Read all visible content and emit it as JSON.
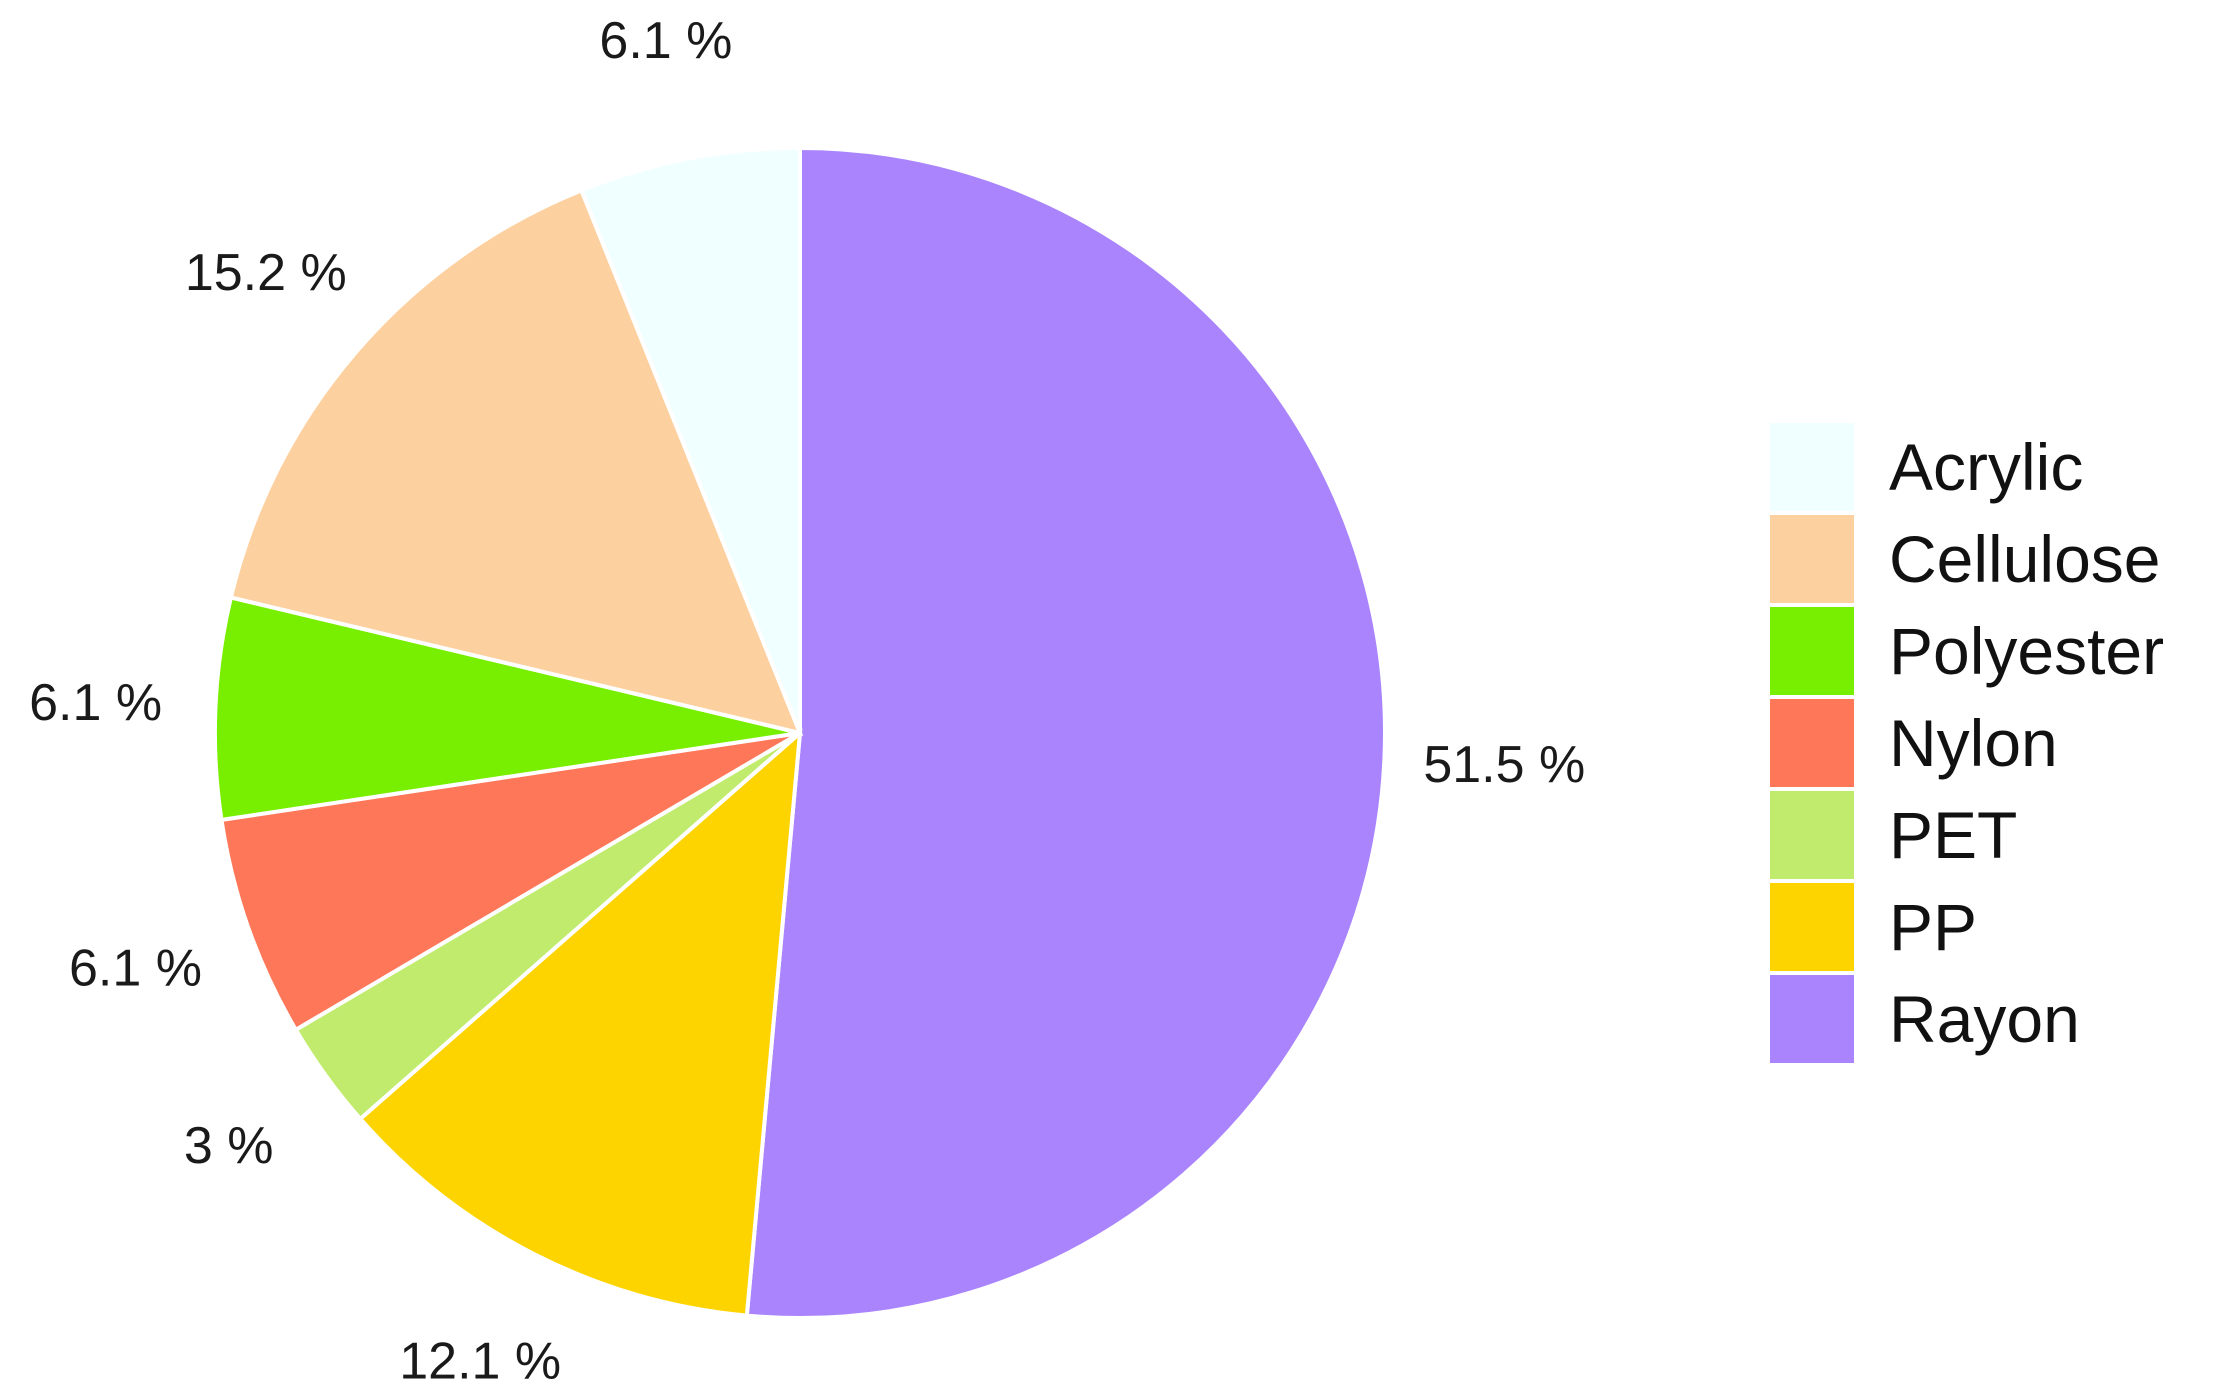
{
  "chart_data": {
    "type": "pie",
    "title": "",
    "start": "12 o'clock",
    "direction": "clockwise",
    "categories": [
      "Rayon",
      "PP",
      "PET",
      "Nylon",
      "Polyester",
      "Cellulose",
      "Acrylic"
    ],
    "values": [
      51.5,
      12.1,
      3,
      6.1,
      6.1,
      15.2,
      6.1
    ],
    "labels": [
      "51.5 %",
      "12.1 %",
      "3 %",
      "6.1 %",
      "6.1 %",
      "15.2 %",
      "6.1 %"
    ],
    "colors": [
      "#A984FC",
      "#FDD400",
      "#C0EB6C",
      "#FF7759",
      "#78EF00",
      "#FDD09F",
      "#F0FFFF"
    ],
    "legend": {
      "position": "right",
      "entries": [
        {
          "label": "Acrylic",
          "color": "#F0FFFF"
        },
        {
          "label": "Cellulose",
          "color": "#FDD09F"
        },
        {
          "label": "Polyester",
          "color": "#78EF00"
        },
        {
          "label": "Nylon",
          "color": "#FF7759"
        },
        {
          "label": "PET",
          "color": "#C0EB6C"
        },
        {
          "label": "PP",
          "color": "#FDD400"
        },
        {
          "label": "Rayon",
          "color": "#A984FC"
        }
      ]
    }
  }
}
